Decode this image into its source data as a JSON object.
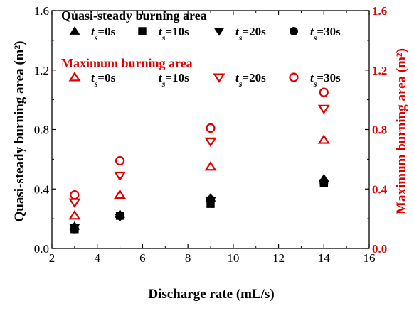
{
  "chart_data": {
    "type": "scatter",
    "xlabel": "Discharge rate (mL/s)",
    "ylabel_left": "Quasi-steady burning area (m²)",
    "ylabel_right": "Maximum burning area (m²)",
    "xlim": [
      2,
      16
    ],
    "ylim": [
      0.0,
      1.6
    ],
    "xticks": [
      "2",
      "4",
      "6",
      "8",
      "10",
      "12",
      "14",
      "16"
    ],
    "yticks": [
      "0.0",
      "0.4",
      "0.8",
      "1.2",
      "1.6"
    ],
    "left_color": "#000000",
    "right_color": "#e00000",
    "legend_groups": [
      {
        "title": "Quasi-steady burning area",
        "series": [
          {
            "name": "ts=0s",
            "marker": "triangle-up",
            "filled": true,
            "color": "#000000"
          },
          {
            "name": "ts=10s",
            "marker": "square",
            "filled": true,
            "color": "#000000"
          },
          {
            "name": "ts=20s",
            "marker": "triangle-down",
            "filled": true,
            "color": "#000000"
          },
          {
            "name": "ts=30s",
            "marker": "circle",
            "filled": true,
            "color": "#000000"
          }
        ]
      },
      {
        "title": "Maximum burning area",
        "series": [
          {
            "name": "ts=0s",
            "marker": "triangle-up",
            "filled": false,
            "color": "#e00000"
          },
          {
            "name": "ts=10s",
            "marker": "none",
            "filled": false,
            "color": "#e00000"
          },
          {
            "name": "ts=20s",
            "marker": "triangle-down",
            "filled": false,
            "color": "#e00000"
          },
          {
            "name": "ts=30s",
            "marker": "circle",
            "filled": false,
            "color": "#e00000"
          }
        ]
      }
    ],
    "points": {
      "quasi_steady": [
        {
          "series": "ts=0s",
          "marker": "triangle-up",
          "x": [
            3,
            5,
            9,
            14
          ],
          "y": [
            0.15,
            0.23,
            0.34,
            0.47
          ]
        },
        {
          "series": "ts=10s",
          "marker": "square",
          "x": [
            3,
            5,
            9,
            14
          ],
          "y": [
            0.13,
            0.22,
            0.3,
            0.44
          ]
        },
        {
          "series": "ts=20s",
          "marker": "triangle-down",
          "x": [
            3,
            5,
            9,
            14
          ],
          "y": [
            0.14,
            0.21,
            0.32,
            0.44
          ]
        },
        {
          "series": "ts=30s",
          "marker": "circle",
          "x": [
            3,
            5,
            9,
            14
          ],
          "y": [
            0.13,
            0.22,
            0.33,
            0.44
          ]
        }
      ],
      "maximum": [
        {
          "series": "ts=0s",
          "marker": "triangle-up",
          "x": [
            3,
            5,
            9,
            14
          ],
          "y": [
            0.22,
            0.36,
            0.55,
            0.73
          ]
        },
        {
          "series": "ts=20s",
          "marker": "triangle-down",
          "x": [
            3,
            5,
            9,
            14
          ],
          "y": [
            0.31,
            0.49,
            0.72,
            0.94
          ]
        },
        {
          "series": "ts=30s",
          "marker": "circle",
          "x": [
            3,
            5,
            9,
            14
          ],
          "y": [
            0.36,
            0.59,
            0.81,
            1.05
          ]
        }
      ]
    }
  }
}
